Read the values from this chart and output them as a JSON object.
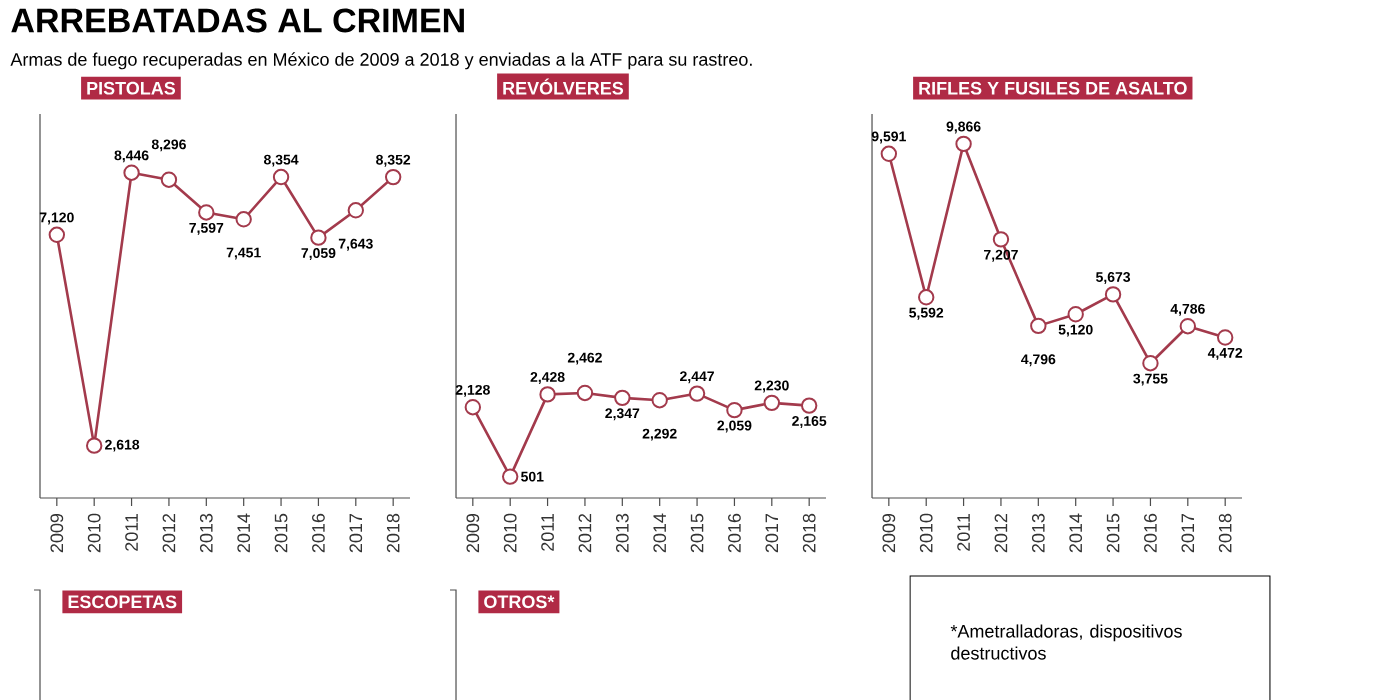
{
  "chart_data": [
    {
      "type": "other",
      "title": "ARREBATADAS AL CRIMEN",
      "subtitle": "Armas de fuego recuperadas en México de 2009 a 2018 y enviadas a la ATF para su rastreo."
    },
    {
      "type": "line",
      "title": "PISTOLAS",
      "categories": [
        "2009",
        "2010",
        "2011",
        "2012",
        "2013",
        "2014",
        "2015",
        "2016",
        "2017",
        "2018"
      ],
      "color": "#a33a4c",
      "marker": "circle",
      "values": [
        7120,
        2618,
        8446,
        8296,
        7597,
        7451,
        8354,
        7059,
        7643,
        8352
      ],
      "value_labels": [
        "7,120",
        "2,618",
        "8,446",
        "8,296",
        "7,597",
        "7,451",
        "8,354",
        "7,059",
        "7,643",
        "8,352"
      ],
      "ylim": [
        1500,
        9700
      ],
      "tick_labels": "x"
    },
    {
      "type": "line",
      "title": "REVÓLVERES",
      "categories": [
        "2009",
        "2010",
        "2011",
        "2012",
        "2013",
        "2014",
        "2015",
        "2016",
        "2017",
        "2018"
      ],
      "color": "#a33a4c",
      "marker": "circle",
      "values": [
        2128,
        501,
        2428,
        2462,
        2347,
        2292,
        2447,
        2059,
        2230,
        2165
      ],
      "value_labels": [
        "2,128",
        "501",
        "2,428",
        "2,462",
        "2,347",
        "2,292",
        "2,447",
        "2,059",
        "2,230",
        "2,165"
      ],
      "ylim": [
        0,
        9000
      ],
      "tick_labels": "x"
    },
    {
      "type": "line",
      "title": "RIFLES Y FUSILES DE ASALTO",
      "categories": [
        "2009",
        "2010",
        "2011",
        "2012",
        "2013",
        "2014",
        "2015",
        "2016",
        "2017",
        "2018"
      ],
      "color": "#a33a4c",
      "marker": "circle",
      "values": [
        9591,
        5592,
        9866,
        7207,
        4796,
        5120,
        5673,
        3755,
        4786,
        4472
      ],
      "value_labels": [
        "9,591",
        "5,592",
        "9,866",
        "7,207",
        "4,796",
        "5,120",
        "5,673",
        "3,755",
        "4,786",
        "4,472"
      ],
      "ylim": [
        0,
        10700
      ],
      "tick_labels": "x"
    },
    {
      "type": "other",
      "title": "ESCOPETAS"
    },
    {
      "type": "other",
      "title": "OTROS*"
    },
    {
      "type": "other",
      "annotations": [
        "*Ametralladoras, dispositivos destructivos"
      ]
    }
  ]
}
